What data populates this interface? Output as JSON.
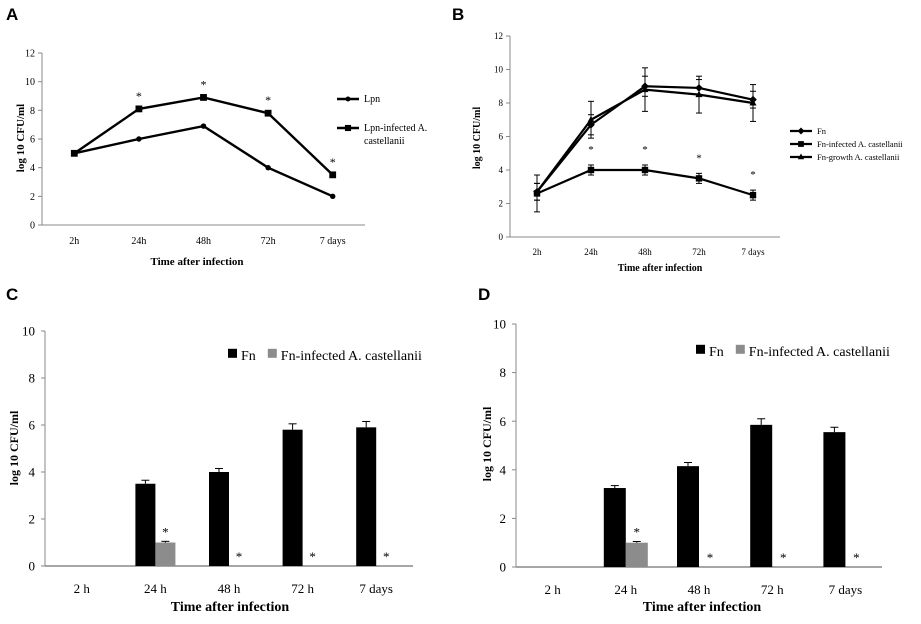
{
  "chart_data": [
    {
      "panel": "A",
      "type": "line",
      "title": "",
      "xlabel": "Time after infection",
      "ylabel": "log 10 CFU/ml",
      "categories": [
        "2h",
        "24h",
        "48h",
        "72h",
        "7 days"
      ],
      "ylim": [
        0,
        12
      ],
      "yticks": [
        0,
        2,
        4,
        6,
        8,
        10,
        12
      ],
      "series": [
        {
          "name": "Lpn",
          "marker": "circle",
          "values": [
            5,
            6,
            6.9,
            4,
            2
          ]
        },
        {
          "name": "Lpn-infected A. castellanii",
          "marker": "square",
          "values": [
            5,
            8.1,
            8.9,
            7.8,
            3.5
          ]
        }
      ],
      "significance": [
        false,
        true,
        true,
        true,
        true
      ],
      "star_label": "*",
      "legend": "right"
    },
    {
      "panel": "B",
      "type": "line",
      "title": "",
      "xlabel": "Time after infection",
      "ylabel": "log 10 CFU/ml",
      "categories": [
        "2h",
        "24h",
        "48h",
        "72h",
        "7 days"
      ],
      "ylim": [
        0,
        12
      ],
      "yticks": [
        0,
        2,
        4,
        6,
        8,
        10,
        12
      ],
      "series": [
        {
          "name": "Fn",
          "marker": "diamond",
          "values": [
            2.7,
            6.7,
            9.0,
            8.9,
            8.2
          ],
          "errors": [
            0.5,
            0.6,
            0.6,
            0.5,
            0.5
          ]
        },
        {
          "name": "Fn-infected A. castellanii",
          "marker": "square",
          "values": [
            2.6,
            4.0,
            4.0,
            3.5,
            2.5
          ],
          "errors": [
            1.1,
            0.3,
            0.3,
            0.3,
            0.3
          ]
        },
        {
          "name": "Fn-growth A. castellanii",
          "marker": "triangle",
          "values": [
            2.7,
            7.0,
            8.8,
            8.5,
            8.0
          ],
          "errors": [
            0.5,
            1.1,
            1.3,
            1.1,
            1.1
          ]
        }
      ],
      "significance": [
        false,
        true,
        true,
        true,
        true
      ],
      "star_label": "*",
      "legend": "right"
    },
    {
      "panel": "C",
      "type": "bar",
      "title": "",
      "xlabel": "Time after infection",
      "ylabel": "log 10 CFU/ml",
      "categories": [
        "2 h",
        "24 h",
        "48 h",
        "72 h",
        "7 days"
      ],
      "ylim": [
        0,
        10
      ],
      "yticks": [
        0,
        2,
        4,
        6,
        8,
        10
      ],
      "series": [
        {
          "name": "Fn",
          "color": "#000000",
          "values": [
            0,
            3.5,
            4.0,
            5.8,
            5.9
          ],
          "errors": [
            0,
            0.15,
            0.15,
            0.25,
            0.25
          ]
        },
        {
          "name": "Fn-infected A. castellanii",
          "color": "#8c8c8c",
          "values": [
            0,
            1.0,
            0,
            0,
            0
          ],
          "errors": [
            0,
            0.05,
            0,
            0,
            0
          ]
        }
      ],
      "significance": [
        false,
        true,
        true,
        true,
        true
      ],
      "star_label": "*",
      "legend": "top-right"
    },
    {
      "panel": "D",
      "type": "bar",
      "title": "",
      "xlabel": "Time after infection",
      "ylabel": "log 10 CFU/ml",
      "categories": [
        "2 h",
        "24 h",
        "48 h",
        "72 h",
        "7 days"
      ],
      "ylim": [
        0,
        10
      ],
      "yticks": [
        0,
        2,
        4,
        6,
        8,
        10
      ],
      "series": [
        {
          "name": "Fn",
          "color": "#000000",
          "values": [
            0,
            3.25,
            4.15,
            5.85,
            5.55
          ],
          "errors": [
            0,
            0.1,
            0.15,
            0.25,
            0.2
          ]
        },
        {
          "name": "Fn-infected A. castellanii",
          "color": "#8c8c8c",
          "values": [
            0,
            1.0,
            0,
            0,
            0
          ],
          "errors": [
            0,
            0.05,
            0,
            0,
            0
          ]
        }
      ],
      "significance": [
        false,
        true,
        true,
        true,
        true
      ],
      "star_label": "*",
      "legend": "top-right"
    }
  ]
}
